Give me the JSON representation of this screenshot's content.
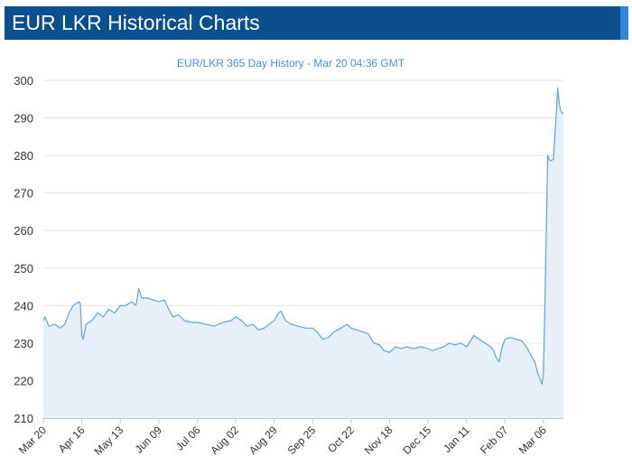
{
  "header": {
    "title": "EUR LKR Historical Charts"
  },
  "colors": {
    "header_bg": "#0b4f8f",
    "line": "#5aa5e0",
    "area": "#e6f0fa"
  },
  "chart_data": {
    "type": "area",
    "title": "EUR/LKR 365 Day History - Mar 20 04:36 GMT",
    "xlabel": "",
    "ylabel": "",
    "ylim": [
      210,
      300
    ],
    "yticks": [
      210,
      220,
      230,
      240,
      250,
      260,
      270,
      280,
      290,
      300
    ],
    "xlim": [
      "2022-03-20",
      "2023-03-20"
    ],
    "xtick_labels": [
      "Mar 20",
      "Apr 16",
      "May 13",
      "Jun 09",
      "Jul 06",
      "Aug 02",
      "Aug 29",
      "Sep 25",
      "Oct 22",
      "Nov 18",
      "Dec 15",
      "Jan 11",
      "Feb 07",
      "Mar 06"
    ],
    "xtick_dates": [
      "2022-03-20",
      "2022-04-16",
      "2022-05-13",
      "2022-06-09",
      "2022-07-06",
      "2022-08-02",
      "2022-08-29",
      "2022-09-25",
      "2022-10-22",
      "2022-11-18",
      "2022-12-15",
      "2023-01-11",
      "2023-02-07",
      "2023-03-06"
    ],
    "grid": true,
    "legend": "none",
    "series": [
      {
        "name": "",
        "points": [
          [
            "2022-03-20",
            236
          ],
          [
            "2022-03-21",
            237
          ],
          [
            "2022-03-24",
            234.5
          ],
          [
            "2022-03-28",
            235
          ],
          [
            "2022-04-01",
            234
          ],
          [
            "2022-04-04",
            235
          ],
          [
            "2022-04-07",
            238
          ],
          [
            "2022-04-10",
            240
          ],
          [
            "2022-04-14",
            241
          ],
          [
            "2022-04-15",
            240.5
          ],
          [
            "2022-04-16",
            232
          ],
          [
            "2022-04-17",
            231
          ],
          [
            "2022-04-19",
            235
          ],
          [
            "2022-04-23",
            236
          ],
          [
            "2022-04-27",
            238
          ],
          [
            "2022-05-01",
            237
          ],
          [
            "2022-05-05",
            239
          ],
          [
            "2022-05-09",
            238
          ],
          [
            "2022-05-13",
            240
          ],
          [
            "2022-05-17",
            240
          ],
          [
            "2022-05-21",
            241
          ],
          [
            "2022-05-24",
            240
          ],
          [
            "2022-05-26",
            244.5
          ],
          [
            "2022-05-28",
            242
          ],
          [
            "2022-06-01",
            242
          ],
          [
            "2022-06-05",
            241.5
          ],
          [
            "2022-06-09",
            241
          ],
          [
            "2022-06-13",
            241.5
          ],
          [
            "2022-06-16",
            239
          ],
          [
            "2022-06-19",
            237
          ],
          [
            "2022-06-23",
            237.5
          ],
          [
            "2022-06-27",
            236
          ],
          [
            "2022-07-02",
            235.5
          ],
          [
            "2022-07-06",
            235.5
          ],
          [
            "2022-07-12",
            235
          ],
          [
            "2022-07-18",
            234.5
          ],
          [
            "2022-07-24",
            235.5
          ],
          [
            "2022-07-30",
            236
          ],
          [
            "2022-08-02",
            237
          ],
          [
            "2022-08-06",
            236
          ],
          [
            "2022-08-10",
            234.5
          ],
          [
            "2022-08-14",
            235
          ],
          [
            "2022-08-18",
            233.5
          ],
          [
            "2022-08-22",
            234
          ],
          [
            "2022-08-29",
            236
          ],
          [
            "2022-09-01",
            238
          ],
          [
            "2022-09-03",
            238.5
          ],
          [
            "2022-09-06",
            236
          ],
          [
            "2022-09-10",
            235
          ],
          [
            "2022-09-15",
            234.5
          ],
          [
            "2022-09-20",
            234
          ],
          [
            "2022-09-25",
            234
          ],
          [
            "2022-09-28",
            233
          ],
          [
            "2022-10-02",
            231
          ],
          [
            "2022-10-06",
            231.5
          ],
          [
            "2022-10-10",
            233
          ],
          [
            "2022-10-15",
            234
          ],
          [
            "2022-10-19",
            235
          ],
          [
            "2022-10-22",
            234
          ],
          [
            "2022-10-26",
            233.5
          ],
          [
            "2022-10-30",
            233
          ],
          [
            "2022-11-03",
            232.5
          ],
          [
            "2022-11-07",
            230
          ],
          [
            "2022-11-11",
            229.5
          ],
          [
            "2022-11-14",
            228
          ],
          [
            "2022-11-18",
            227.5
          ],
          [
            "2022-11-22",
            229
          ],
          [
            "2022-11-26",
            228.5
          ],
          [
            "2022-11-30",
            229
          ],
          [
            "2022-12-05",
            228.5
          ],
          [
            "2022-12-10",
            229
          ],
          [
            "2022-12-15",
            228.5
          ],
          [
            "2022-12-18",
            228
          ],
          [
            "2022-12-22",
            228.5
          ],
          [
            "2022-12-26",
            229
          ],
          [
            "2022-12-30",
            230
          ],
          [
            "2023-01-03",
            229.5
          ],
          [
            "2023-01-07",
            230
          ],
          [
            "2023-01-11",
            229
          ],
          [
            "2023-01-13",
            230
          ],
          [
            "2023-01-16",
            232
          ],
          [
            "2023-01-20",
            231
          ],
          [
            "2023-01-24",
            230
          ],
          [
            "2023-01-28",
            229
          ],
          [
            "2023-01-30",
            228
          ],
          [
            "2023-02-01",
            226
          ],
          [
            "2023-02-03",
            225
          ],
          [
            "2023-02-05",
            229
          ],
          [
            "2023-02-07",
            231
          ],
          [
            "2023-02-11",
            231.5
          ],
          [
            "2023-02-15",
            231
          ],
          [
            "2023-02-19",
            230.5
          ],
          [
            "2023-02-22",
            229
          ],
          [
            "2023-02-25",
            227
          ],
          [
            "2023-02-28",
            225
          ],
          [
            "2023-03-02",
            222
          ],
          [
            "2023-03-04",
            220
          ],
          [
            "2023-03-05",
            219
          ],
          [
            "2023-03-06",
            222
          ],
          [
            "2023-03-07",
            240
          ],
          [
            "2023-03-08",
            260
          ],
          [
            "2023-03-09",
            280
          ],
          [
            "2023-03-10",
            279
          ],
          [
            "2023-03-11",
            278.5
          ],
          [
            "2023-03-13",
            279
          ],
          [
            "2023-03-14",
            285
          ],
          [
            "2023-03-15",
            291
          ],
          [
            "2023-03-16",
            298
          ],
          [
            "2023-03-17",
            294
          ],
          [
            "2023-03-18",
            292
          ],
          [
            "2023-03-19",
            291.5
          ],
          [
            "2023-03-20",
            291
          ]
        ]
      }
    ]
  }
}
